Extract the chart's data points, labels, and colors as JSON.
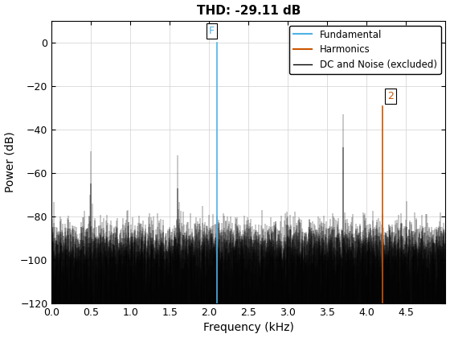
{
  "title": "THD: -29.11 dB",
  "xlabel": "Frequency (kHz)",
  "ylabel": "Power (dB)",
  "xlim": [
    0,
    5.0
  ],
  "ylim": [
    -120,
    10
  ],
  "yticks": [
    0,
    -20,
    -40,
    -60,
    -80,
    -100,
    -120
  ],
  "xticks": [
    0,
    0.5,
    1.0,
    1.5,
    2.0,
    2.5,
    3.0,
    3.5,
    4.0,
    4.5
  ],
  "fundamental_freq": 2.1,
  "fundamental_power": 0,
  "harmonic_freq": 4.2,
  "harmonic_power": -29.11,
  "noise_floor": -93,
  "noise_std": 6,
  "fundamental_color": "#4db3e6",
  "harmonic_color": "#cc5500",
  "noise_color": "#000000",
  "legend_labels": [
    "Fundamental",
    "Harmonics",
    "DC and Noise (excluded)"
  ],
  "spike_freqs": [
    0.5,
    1.6,
    3.7
  ],
  "spike_powers": [
    -50,
    -52,
    -33
  ],
  "title_fontsize": 11,
  "label_fontsize": 10
}
